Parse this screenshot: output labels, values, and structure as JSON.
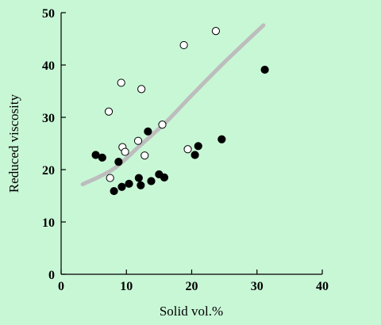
{
  "colors": {
    "background": "#c8f7d6",
    "filled_marker": "#000000",
    "open_marker_fill": "#ffffff",
    "trend_line": "#bdbdbd"
  },
  "chart_data": {
    "type": "scatter",
    "title": "",
    "xlabel": "Solid vol.%",
    "ylabel": "Reduced viscosity",
    "xlim": [
      0,
      40
    ],
    "ylim": [
      0,
      50
    ],
    "x_ticks": [
      "0",
      "10",
      "20",
      "30",
      "40"
    ],
    "y_ticks": [
      "0",
      "10",
      "20",
      "30",
      "40",
      "50"
    ],
    "grid": false,
    "legend": "none",
    "series": [
      {
        "marker": "filled-circle",
        "points": [
          {
            "x": 5.3,
            "y": 22.8
          },
          {
            "x": 6.3,
            "y": 22.3
          },
          {
            "x": 8.1,
            "y": 15.9
          },
          {
            "x": 8.8,
            "y": 21.5
          },
          {
            "x": 9.3,
            "y": 16.7
          },
          {
            "x": 10.4,
            "y": 17.3
          },
          {
            "x": 11.9,
            "y": 18.4
          },
          {
            "x": 12.2,
            "y": 17.0
          },
          {
            "x": 13.3,
            "y": 27.3
          },
          {
            "x": 13.8,
            "y": 17.8
          },
          {
            "x": 15.0,
            "y": 19.1
          },
          {
            "x": 15.8,
            "y": 18.5
          },
          {
            "x": 20.5,
            "y": 22.8
          },
          {
            "x": 21.0,
            "y": 24.5
          },
          {
            "x": 24.6,
            "y": 25.8
          },
          {
            "x": 31.2,
            "y": 39.1
          }
        ]
      },
      {
        "marker": "open-circle",
        "points": [
          {
            "x": 7.3,
            "y": 31.1
          },
          {
            "x": 7.5,
            "y": 18.4
          },
          {
            "x": 9.2,
            "y": 36.6
          },
          {
            "x": 9.4,
            "y": 24.3
          },
          {
            "x": 9.8,
            "y": 23.4
          },
          {
            "x": 11.8,
            "y": 25.5
          },
          {
            "x": 12.3,
            "y": 35.4
          },
          {
            "x": 12.8,
            "y": 22.7
          },
          {
            "x": 15.5,
            "y": 28.6
          },
          {
            "x": 18.8,
            "y": 43.8
          },
          {
            "x": 19.4,
            "y": 23.9
          },
          {
            "x": 23.7,
            "y": 46.5
          }
        ]
      }
    ],
    "trend_curve": [
      {
        "x": 3.3,
        "y": 17.2
      },
      {
        "x": 8.0,
        "y": 20.1
      },
      {
        "x": 12.0,
        "y": 24.5
      },
      {
        "x": 16.0,
        "y": 29.0
      },
      {
        "x": 20.0,
        "y": 34.2
      },
      {
        "x": 25.0,
        "y": 40.5
      },
      {
        "x": 31.0,
        "y": 47.6
      }
    ]
  }
}
